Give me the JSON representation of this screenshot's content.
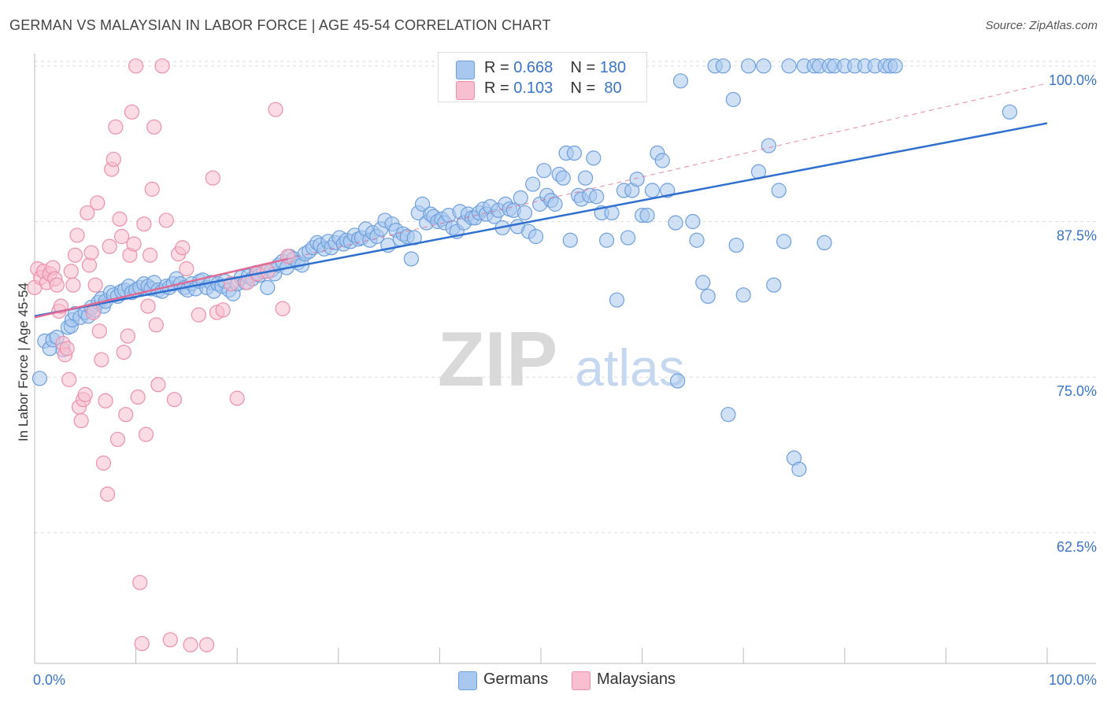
{
  "title": "GERMAN VS MALAYSIAN IN LABOR FORCE | AGE 45-54 CORRELATION CHART",
  "source": "Source: ZipAtlas.com",
  "watermark": {
    "zip": "ZIP",
    "atlas": "atlas"
  },
  "legend": {
    "r_label": "R =",
    "n_label": "N =",
    "entries": [
      {
        "r": "0.668",
        "n": "180",
        "color": "#a9c8ef",
        "stroke": "#6d9fdc"
      },
      {
        "r": "0.103",
        "n": "80",
        "color": "#f7bfd0",
        "stroke": "#ec8fab"
      }
    ]
  },
  "bottom_legend": [
    "Germans",
    "Malaysians"
  ],
  "chart_data": {
    "type": "scatter",
    "xlabel": "",
    "ylabel": "In Labor Force | Age 45-54",
    "xlim": [
      0,
      100
    ],
    "ylim": [
      52,
      101
    ],
    "x_tick_labels": [
      "0.0%",
      "100.0%"
    ],
    "y_ticks": [
      62.5,
      75.0,
      87.5,
      100.0
    ],
    "y_tick_labels": [
      "62.5%",
      "75.0%",
      "87.5%",
      "100.0%"
    ],
    "grid": true,
    "legend_position": "top-center",
    "colors": {
      "german": "#6d9fdc",
      "german_fill": "#a9c8ef",
      "malaysian": "#ec8fab",
      "malaysian_fill": "#f7bfd0",
      "german_line": "#2f6fcf",
      "malaysian_line": "#e06a93"
    },
    "series": [
      {
        "name": "Germans",
        "trend": {
          "x": [
            0,
            100
          ],
          "y": [
            79.9,
            95.4
          ]
        },
        "points": [
          [
            0.5,
            74.9
          ],
          [
            1.0,
            77.9
          ],
          [
            1.5,
            77.3
          ],
          [
            1.8,
            78.0
          ],
          [
            2.2,
            78.2
          ],
          [
            2.8,
            77.2
          ],
          [
            3.3,
            79.0
          ],
          [
            3.6,
            79.1
          ],
          [
            3.7,
            79.6
          ],
          [
            4.0,
            80.1
          ],
          [
            4.5,
            79.8
          ],
          [
            5.0,
            80.2
          ],
          [
            5.3,
            79.9
          ],
          [
            5.6,
            80.6
          ],
          [
            5.9,
            80.4
          ],
          [
            6.3,
            81.0
          ],
          [
            6.6,
            81.3
          ],
          [
            6.8,
            80.7
          ],
          [
            7.0,
            81.1
          ],
          [
            7.5,
            81.8
          ],
          [
            7.8,
            81.6
          ],
          [
            8.2,
            81.5
          ],
          [
            8.6,
            81.9
          ],
          [
            8.9,
            82.0
          ],
          [
            9.3,
            82.3
          ],
          [
            9.6,
            81.8
          ],
          [
            10.0,
            82.0
          ],
          [
            10.4,
            82.2
          ],
          [
            10.8,
            82.5
          ],
          [
            11.2,
            82.3
          ],
          [
            11.5,
            82.1
          ],
          [
            11.8,
            82.6
          ],
          [
            12.2,
            82.0
          ],
          [
            12.6,
            81.9
          ],
          [
            13.0,
            82.3
          ],
          [
            13.3,
            82.2
          ],
          [
            13.7,
            82.5
          ],
          [
            14.0,
            82.9
          ],
          [
            14.4,
            82.5
          ],
          [
            14.8,
            82.2
          ],
          [
            15.1,
            82.0
          ],
          [
            15.5,
            82.5
          ],
          [
            15.9,
            82.1
          ],
          [
            16.3,
            82.7
          ],
          [
            16.6,
            82.8
          ],
          [
            17.0,
            82.2
          ],
          [
            17.4,
            82.6
          ],
          [
            17.7,
            81.9
          ],
          [
            18.1,
            82.5
          ],
          [
            18.5,
            82.3
          ],
          [
            18.8,
            82.7
          ],
          [
            19.2,
            82.0
          ],
          [
            19.6,
            81.7
          ],
          [
            20.0,
            82.5
          ],
          [
            20.4,
            83.0
          ],
          [
            20.8,
            82.6
          ],
          [
            21.1,
            83.1
          ],
          [
            21.5,
            82.9
          ],
          [
            21.9,
            83.4
          ],
          [
            22.2,
            83.2
          ],
          [
            22.6,
            83.5
          ],
          [
            23.0,
            82.2
          ],
          [
            23.4,
            83.6
          ],
          [
            23.7,
            83.3
          ],
          [
            24.1,
            84.0
          ],
          [
            24.5,
            84.3
          ],
          [
            24.9,
            83.8
          ],
          [
            25.2,
            84.7
          ],
          [
            25.6,
            84.5
          ],
          [
            26.0,
            84.2
          ],
          [
            26.4,
            84.0
          ],
          [
            26.7,
            84.9
          ],
          [
            27.1,
            85.1
          ],
          [
            27.5,
            85.4
          ],
          [
            27.9,
            85.8
          ],
          [
            28.2,
            85.6
          ],
          [
            28.6,
            85.3
          ],
          [
            29.0,
            85.9
          ],
          [
            29.3,
            85.4
          ],
          [
            29.7,
            85.8
          ],
          [
            30.1,
            86.2
          ],
          [
            30.5,
            85.7
          ],
          [
            30.8,
            86.0
          ],
          [
            31.2,
            85.9
          ],
          [
            31.6,
            86.4
          ],
          [
            32.0,
            86.1
          ],
          [
            32.3,
            86.2
          ],
          [
            32.7,
            86.9
          ],
          [
            33.1,
            86.0
          ],
          [
            33.4,
            86.6
          ],
          [
            33.8,
            86.3
          ],
          [
            34.2,
            86.9
          ],
          [
            34.6,
            87.6
          ],
          [
            34.9,
            85.6
          ],
          [
            35.3,
            87.3
          ],
          [
            35.7,
            86.8
          ],
          [
            36.1,
            86.1
          ],
          [
            36.4,
            86.5
          ],
          [
            36.8,
            86.3
          ],
          [
            37.2,
            84.5
          ],
          [
            37.5,
            86.2
          ],
          [
            37.9,
            88.2
          ],
          [
            38.3,
            88.9
          ],
          [
            38.7,
            87.4
          ],
          [
            39.1,
            88.1
          ],
          [
            39.4,
            87.9
          ],
          [
            39.8,
            87.5
          ],
          [
            40.2,
            87.7
          ],
          [
            40.5,
            87.4
          ],
          [
            40.9,
            88.0
          ],
          [
            41.3,
            87.0
          ],
          [
            41.7,
            86.7
          ],
          [
            42.0,
            88.3
          ],
          [
            42.4,
            87.4
          ],
          [
            42.8,
            88.1
          ],
          [
            43.2,
            87.8
          ],
          [
            43.5,
            87.8
          ],
          [
            43.9,
            88.2
          ],
          [
            44.3,
            88.5
          ],
          [
            44.6,
            88.1
          ],
          [
            45.0,
            88.7
          ],
          [
            45.4,
            87.9
          ],
          [
            45.8,
            88.4
          ],
          [
            46.2,
            87.0
          ],
          [
            46.5,
            88.9
          ],
          [
            46.9,
            88.5
          ],
          [
            47.3,
            88.4
          ],
          [
            47.7,
            87.1
          ],
          [
            48.0,
            89.4
          ],
          [
            48.4,
            88.2
          ],
          [
            48.8,
            86.7
          ],
          [
            49.2,
            90.5
          ],
          [
            49.5,
            86.3
          ],
          [
            49.9,
            88.9
          ],
          [
            50.3,
            91.6
          ],
          [
            50.6,
            89.6
          ],
          [
            51.0,
            89.2
          ],
          [
            51.4,
            88.9
          ],
          [
            51.8,
            91.3
          ],
          [
            52.2,
            91.0
          ],
          [
            52.5,
            93.0
          ],
          [
            52.9,
            86.0
          ],
          [
            53.3,
            93.0
          ],
          [
            53.7,
            89.6
          ],
          [
            54.0,
            89.3
          ],
          [
            54.4,
            91.0
          ],
          [
            54.8,
            89.6
          ],
          [
            55.2,
            92.6
          ],
          [
            55.5,
            89.5
          ],
          [
            56.0,
            88.2
          ],
          [
            56.5,
            86.0
          ],
          [
            57.0,
            88.2
          ],
          [
            57.5,
            81.2
          ],
          [
            58.2,
            90.0
          ],
          [
            58.6,
            86.2
          ],
          [
            59.0,
            90.0
          ],
          [
            59.5,
            90.9
          ],
          [
            60.0,
            88.0
          ],
          [
            60.5,
            88.0
          ],
          [
            61.0,
            90.0
          ],
          [
            61.5,
            93.0
          ],
          [
            62.0,
            92.4
          ],
          [
            62.5,
            90.0
          ],
          [
            63.3,
            87.4
          ],
          [
            63.5,
            74.7
          ],
          [
            63.8,
            98.8
          ],
          [
            65.0,
            87.5
          ],
          [
            65.4,
            86.0
          ],
          [
            66.0,
            82.6
          ],
          [
            66.5,
            81.5
          ],
          [
            67.2,
            100.0
          ],
          [
            68.0,
            100.0
          ],
          [
            68.5,
            72.0
          ],
          [
            69.0,
            97.3
          ],
          [
            69.3,
            85.6
          ],
          [
            70.0,
            81.6
          ],
          [
            70.5,
            100.0
          ],
          [
            71.5,
            91.5
          ],
          [
            72.0,
            100.0
          ],
          [
            72.5,
            93.6
          ],
          [
            73.0,
            82.4
          ],
          [
            73.5,
            90.0
          ],
          [
            74.0,
            85.9
          ],
          [
            74.5,
            100.0
          ],
          [
            75.0,
            68.5
          ],
          [
            75.5,
            67.6
          ],
          [
            76.0,
            100.0
          ],
          [
            77.0,
            100.0
          ],
          [
            77.5,
            100.0
          ],
          [
            78.0,
            85.8
          ],
          [
            78.5,
            100.0
          ],
          [
            79.0,
            100.0
          ],
          [
            80.0,
            100.0
          ],
          [
            81.0,
            100.0
          ],
          [
            82.0,
            100.0
          ],
          [
            83.0,
            100.0
          ],
          [
            84.0,
            100.0
          ],
          [
            84.5,
            100.0
          ],
          [
            85.0,
            100.0
          ],
          [
            96.3,
            96.3
          ]
        ]
      },
      {
        "name": "Malaysians",
        "trend": {
          "x": [
            0,
            25
          ],
          "y": [
            79.8,
            84.5
          ]
        },
        "points": [
          [
            0.0,
            82.2
          ],
          [
            0.3,
            83.7
          ],
          [
            0.6,
            83.0
          ],
          [
            0.9,
            83.5
          ],
          [
            1.2,
            82.6
          ],
          [
            1.5,
            83.3
          ],
          [
            1.8,
            83.8
          ],
          [
            2.0,
            82.9
          ],
          [
            2.2,
            82.4
          ],
          [
            2.4,
            80.3
          ],
          [
            2.6,
            80.7
          ],
          [
            2.8,
            77.7
          ],
          [
            3.0,
            76.8
          ],
          [
            3.2,
            77.3
          ],
          [
            3.4,
            74.8
          ],
          [
            3.6,
            83.5
          ],
          [
            3.8,
            82.4
          ],
          [
            4.0,
            84.8
          ],
          [
            4.2,
            86.4
          ],
          [
            4.4,
            72.6
          ],
          [
            4.6,
            71.5
          ],
          [
            4.8,
            73.2
          ],
          [
            5.0,
            73.6
          ],
          [
            5.2,
            88.2
          ],
          [
            5.4,
            84.0
          ],
          [
            5.6,
            85.0
          ],
          [
            5.8,
            80.2
          ],
          [
            6.0,
            82.4
          ],
          [
            6.2,
            89.0
          ],
          [
            6.4,
            78.7
          ],
          [
            6.6,
            76.4
          ],
          [
            6.8,
            68.1
          ],
          [
            7.0,
            73.1
          ],
          [
            7.2,
            65.6
          ],
          [
            7.4,
            85.5
          ],
          [
            7.6,
            91.7
          ],
          [
            7.8,
            92.5
          ],
          [
            8.0,
            95.1
          ],
          [
            8.2,
            70.0
          ],
          [
            8.4,
            87.7
          ],
          [
            8.6,
            86.3
          ],
          [
            8.8,
            77.0
          ],
          [
            9.0,
            72.0
          ],
          [
            9.2,
            78.3
          ],
          [
            9.4,
            84.8
          ],
          [
            9.6,
            96.3
          ],
          [
            9.8,
            85.7
          ],
          [
            10.0,
            100.0
          ],
          [
            10.2,
            73.4
          ],
          [
            10.4,
            58.5
          ],
          [
            10.6,
            53.6
          ],
          [
            10.8,
            87.3
          ],
          [
            11.0,
            70.4
          ],
          [
            11.2,
            80.7
          ],
          [
            11.4,
            84.8
          ],
          [
            11.6,
            90.1
          ],
          [
            11.8,
            95.1
          ],
          [
            12.0,
            79.2
          ],
          [
            12.2,
            74.4
          ],
          [
            12.6,
            100.0
          ],
          [
            13.0,
            87.6
          ],
          [
            13.4,
            53.9
          ],
          [
            13.8,
            73.2
          ],
          [
            14.2,
            84.9
          ],
          [
            14.6,
            85.4
          ],
          [
            15.0,
            83.7
          ],
          [
            15.4,
            53.5
          ],
          [
            16.2,
            80.0
          ],
          [
            17.0,
            53.5
          ],
          [
            17.6,
            91.0
          ],
          [
            18.0,
            80.2
          ],
          [
            18.6,
            80.4
          ],
          [
            19.4,
            82.5
          ],
          [
            20.0,
            73.3
          ],
          [
            21.0,
            82.6
          ],
          [
            22.0,
            83.3
          ],
          [
            23.0,
            83.5
          ],
          [
            23.8,
            96.5
          ],
          [
            24.5,
            80.5
          ],
          [
            25.0,
            84.7
          ]
        ]
      }
    ]
  }
}
